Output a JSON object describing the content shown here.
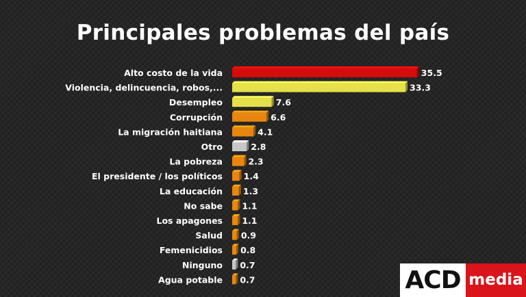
{
  "chart_data": {
    "type": "bar",
    "orientation": "horizontal",
    "title": "Principales problemas del país",
    "categories": [
      "Alto costo de la vida",
      "Violencia, delincuencia, robos,...",
      "Desempleo",
      "Corrupción",
      "La migración haitiana",
      "Otro",
      "La pobreza",
      "El presidente / los políticos",
      "La educación",
      "No sabe",
      "Los apagones",
      "Salud",
      "Femenicidios",
      "Ninguno",
      "Agua potable"
    ],
    "values": [
      35.5,
      33.3,
      7.6,
      6.6,
      4.1,
      2.8,
      2.3,
      1.4,
      1.3,
      1.1,
      1.1,
      0.9,
      0.8,
      0.7,
      0.7
    ],
    "bar_colors": [
      "#d40c0c",
      "#e6e04a",
      "#e6e04a",
      "#e8860f",
      "#e8860f",
      "#c8c8c8",
      "#e8860f",
      "#e8860f",
      "#e8860f",
      "#e8860f",
      "#e8860f",
      "#e8860f",
      "#e8860f",
      "#c8c8c8",
      "#e8860f"
    ],
    "xlim": [
      0,
      35.5
    ],
    "grid": false,
    "legend": "none"
  },
  "logo": {
    "left_text": "ACD",
    "right_text": "media"
  }
}
